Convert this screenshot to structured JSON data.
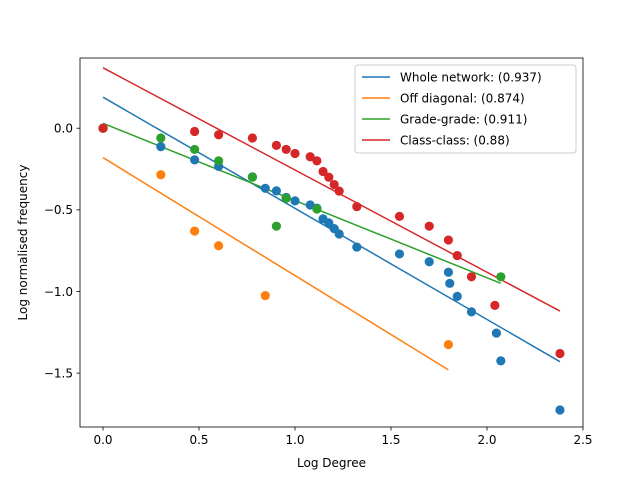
{
  "chart_data": {
    "type": "scatter",
    "title": "",
    "xlabel": "Log Degree",
    "ylabel": "Log normalised frequency",
    "xlim": [
      -0.12,
      2.5
    ],
    "ylim": [
      -1.83,
      0.43
    ],
    "xticks": [
      0.0,
      0.5,
      1.0,
      1.5,
      2.0,
      2.5
    ],
    "xtick_labels": [
      "0.0",
      "0.5",
      "1.0",
      "1.5",
      "2.0",
      "2.5"
    ],
    "yticks": [
      -1.5,
      -1.0,
      -0.5,
      0.0
    ],
    "ytick_labels": [
      "−1.5",
      "−1.0",
      "−0.5",
      "0.0"
    ],
    "grid": false,
    "legend_position": "top-right",
    "series": [
      {
        "name": "Whole network: (0.937)",
        "color": "#1f77b4",
        "points": [
          [
            0.0,
            0.0
          ],
          [
            0.301,
            -0.113
          ],
          [
            0.477,
            -0.194
          ],
          [
            0.602,
            -0.234
          ],
          [
            0.778,
            -0.298
          ],
          [
            0.845,
            -0.368
          ],
          [
            0.903,
            -0.384
          ],
          [
            0.954,
            -0.424
          ],
          [
            1.0,
            -0.445
          ],
          [
            1.079,
            -0.47
          ],
          [
            1.114,
            -0.49
          ],
          [
            1.146,
            -0.555
          ],
          [
            1.176,
            -0.58
          ],
          [
            1.204,
            -0.615
          ],
          [
            1.23,
            -0.648
          ],
          [
            1.322,
            -0.728
          ],
          [
            1.544,
            -0.77
          ],
          [
            1.699,
            -0.818
          ],
          [
            1.799,
            -0.882
          ],
          [
            1.806,
            -0.95
          ],
          [
            1.845,
            -1.03
          ],
          [
            1.919,
            -1.125
          ],
          [
            2.049,
            -1.255
          ],
          [
            2.072,
            -1.425
          ],
          [
            2.38,
            -1.726
          ]
        ],
        "fit": [
          [
            0.0,
            0.19
          ],
          [
            2.38,
            -1.43
          ]
        ]
      },
      {
        "name": "Off diagonal: (0.874)",
        "color": "#ff7f0e",
        "points": [
          [
            0.0,
            0.0
          ],
          [
            0.301,
            -0.285
          ],
          [
            0.477,
            -0.63
          ],
          [
            0.602,
            -0.72
          ],
          [
            0.845,
            -1.025
          ],
          [
            1.799,
            -1.325
          ]
        ],
        "fit": [
          [
            0.0,
            -0.18
          ],
          [
            1.799,
            -1.48
          ]
        ]
      },
      {
        "name": "Grade-grade: (0.911)",
        "color": "#2ca02c",
        "points": [
          [
            0.0,
            0.0
          ],
          [
            0.301,
            -0.06
          ],
          [
            0.477,
            -0.13
          ],
          [
            0.602,
            -0.2
          ],
          [
            0.778,
            -0.3
          ],
          [
            0.903,
            -0.6
          ],
          [
            0.954,
            -0.43
          ],
          [
            1.114,
            -0.495
          ],
          [
            2.072,
            -0.91
          ]
        ],
        "fit": [
          [
            0.0,
            0.03
          ],
          [
            2.072,
            -0.95
          ]
        ]
      },
      {
        "name": "Class-class: (0.88)",
        "color": "#d62728",
        "points": [
          [
            0.0,
            0.0
          ],
          [
            0.477,
            -0.02
          ],
          [
            0.602,
            -0.04
          ],
          [
            0.778,
            -0.06
          ],
          [
            0.903,
            -0.105
          ],
          [
            0.954,
            -0.13
          ],
          [
            1.0,
            -0.155
          ],
          [
            1.079,
            -0.175
          ],
          [
            1.114,
            -0.2
          ],
          [
            1.146,
            -0.265
          ],
          [
            1.176,
            -0.3
          ],
          [
            1.204,
            -0.345
          ],
          [
            1.23,
            -0.385
          ],
          [
            1.322,
            -0.48
          ],
          [
            1.544,
            -0.54
          ],
          [
            1.699,
            -0.6
          ],
          [
            1.799,
            -0.685
          ],
          [
            1.845,
            -0.78
          ],
          [
            1.919,
            -0.91
          ],
          [
            2.041,
            -1.085
          ],
          [
            2.38,
            -1.38
          ]
        ],
        "fit": [
          [
            0.0,
            0.37
          ],
          [
            2.38,
            -1.12
          ]
        ]
      }
    ]
  }
}
